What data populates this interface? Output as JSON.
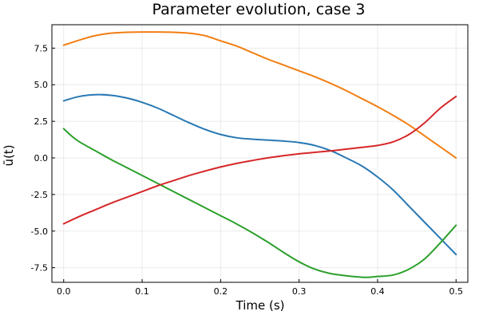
{
  "chart_data": {
    "type": "line",
    "title": "Parameter evolution, case 3",
    "xlabel": "Time (s)",
    "ylabel": "ū(t)",
    "xlim": [
      -0.015,
      0.515
    ],
    "ylim": [
      -8.5,
      9.1
    ],
    "x_ticks": [
      0.0,
      0.1,
      0.2,
      0.3,
      0.4,
      0.5
    ],
    "x_tick_labels": [
      "0.0",
      "0.1",
      "0.2",
      "0.3",
      "0.4",
      "0.5"
    ],
    "y_ticks": [
      -7.5,
      -5.0,
      -2.5,
      0.0,
      2.5,
      5.0,
      7.5
    ],
    "y_tick_labels": [
      "-7.5",
      "-5.0",
      "-2.5",
      "0.0",
      "2.5",
      "5.0",
      "7.5"
    ],
    "grid": true,
    "legend": "none",
    "series": [
      {
        "color": "#2878b4",
        "x": [
          0.0,
          0.02,
          0.04,
          0.06,
          0.08,
          0.1,
          0.12,
          0.14,
          0.16,
          0.18,
          0.2,
          0.22,
          0.24,
          0.26,
          0.28,
          0.3,
          0.32,
          0.34,
          0.36,
          0.38,
          0.4,
          0.42,
          0.44,
          0.46,
          0.48,
          0.5
        ],
        "y": [
          3.9,
          4.2,
          4.32,
          4.28,
          4.1,
          3.8,
          3.4,
          2.9,
          2.4,
          1.95,
          1.6,
          1.38,
          1.28,
          1.22,
          1.15,
          1.05,
          0.85,
          0.5,
          0.0,
          -0.55,
          -1.3,
          -2.2,
          -3.3,
          -4.4,
          -5.5,
          -6.6
        ]
      },
      {
        "color": "#f27e12",
        "x": [
          0.0,
          0.02,
          0.04,
          0.06,
          0.08,
          0.1,
          0.12,
          0.14,
          0.16,
          0.18,
          0.2,
          0.22,
          0.24,
          0.26,
          0.28,
          0.3,
          0.32,
          0.34,
          0.36,
          0.38,
          0.4,
          0.42,
          0.44,
          0.46,
          0.48,
          0.5
        ],
        "y": [
          7.7,
          8.05,
          8.35,
          8.52,
          8.58,
          8.6,
          8.6,
          8.58,
          8.52,
          8.35,
          8.0,
          7.65,
          7.2,
          6.75,
          6.35,
          5.95,
          5.55,
          5.1,
          4.6,
          4.05,
          3.5,
          2.9,
          2.25,
          1.5,
          0.75,
          0.0
        ]
      },
      {
        "color": "#2ca02c",
        "x": [
          0.0,
          0.01,
          0.02,
          0.04,
          0.06,
          0.08,
          0.1,
          0.12,
          0.14,
          0.16,
          0.18,
          0.2,
          0.22,
          0.24,
          0.26,
          0.28,
          0.3,
          0.32,
          0.34,
          0.36,
          0.38,
          0.39,
          0.4,
          0.42,
          0.44,
          0.46,
          0.48,
          0.5
        ],
        "y": [
          2.0,
          1.5,
          1.1,
          0.5,
          -0.1,
          -0.65,
          -1.2,
          -1.75,
          -2.3,
          -2.85,
          -3.4,
          -3.95,
          -4.5,
          -5.1,
          -5.75,
          -6.45,
          -7.1,
          -7.6,
          -7.9,
          -8.05,
          -8.15,
          -8.15,
          -8.1,
          -8.0,
          -7.6,
          -6.9,
          -5.8,
          -4.6
        ]
      },
      {
        "color": "#d62728",
        "x": [
          0.0,
          0.02,
          0.04,
          0.06,
          0.08,
          0.1,
          0.12,
          0.14,
          0.16,
          0.18,
          0.2,
          0.22,
          0.24,
          0.26,
          0.28,
          0.3,
          0.32,
          0.34,
          0.36,
          0.38,
          0.4,
          0.42,
          0.44,
          0.46,
          0.48,
          0.5
        ],
        "y": [
          -4.5,
          -4.0,
          -3.55,
          -3.1,
          -2.7,
          -2.3,
          -1.9,
          -1.55,
          -1.2,
          -0.9,
          -0.62,
          -0.38,
          -0.18,
          0.0,
          0.15,
          0.28,
          0.38,
          0.48,
          0.6,
          0.72,
          0.85,
          1.1,
          1.6,
          2.4,
          3.4,
          4.2
        ]
      }
    ]
  }
}
